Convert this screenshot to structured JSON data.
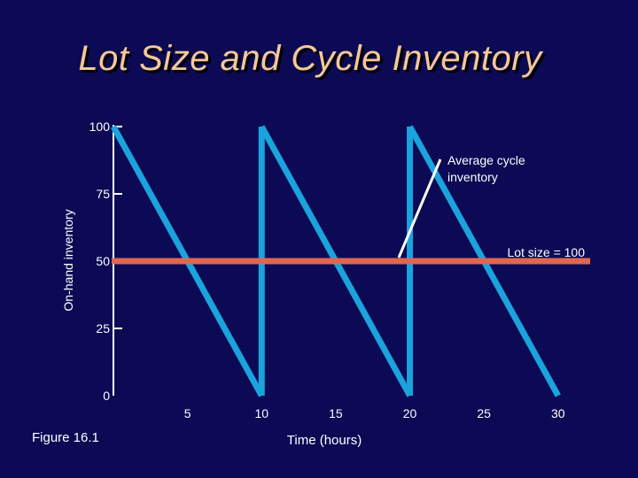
{
  "title": "Lot Size and Cycle Inventory",
  "figure_label": "Figure 16.1",
  "colors": {
    "background": "#0c0a55",
    "title": "#f5c89a",
    "inventory_line": "#1aa3dc",
    "average_line": "#e06650",
    "axis": "#ffffff",
    "text": "#ffffff"
  },
  "chart_data": {
    "type": "line",
    "xlabel": "Time (hours)",
    "ylabel": "On-hand inventory",
    "xlim": [
      0,
      33
    ],
    "ylim": [
      0,
      100
    ],
    "x_ticks": [
      5,
      10,
      15,
      20,
      25,
      30
    ],
    "x_tick_labels": [
      "5",
      "10",
      "15",
      "20",
      "25",
      "30"
    ],
    "y_ticks": [
      0,
      25,
      50,
      75,
      100
    ],
    "y_tick_labels": [
      "0",
      "25",
      "50",
      "75",
      "100"
    ],
    "grid": false,
    "series": [
      {
        "values_x": [
          0,
          10,
          10,
          20,
          20,
          30
        ],
        "values_y": [
          100,
          0,
          100,
          0,
          100,
          0
        ]
      }
    ],
    "average_line": {
      "y": 50
    },
    "annotations": [
      {
        "text": "Average cycle inventory",
        "lines": [
          "Average cycle",
          "inventory"
        ]
      },
      {
        "text": "Lot size = 100"
      }
    ]
  }
}
